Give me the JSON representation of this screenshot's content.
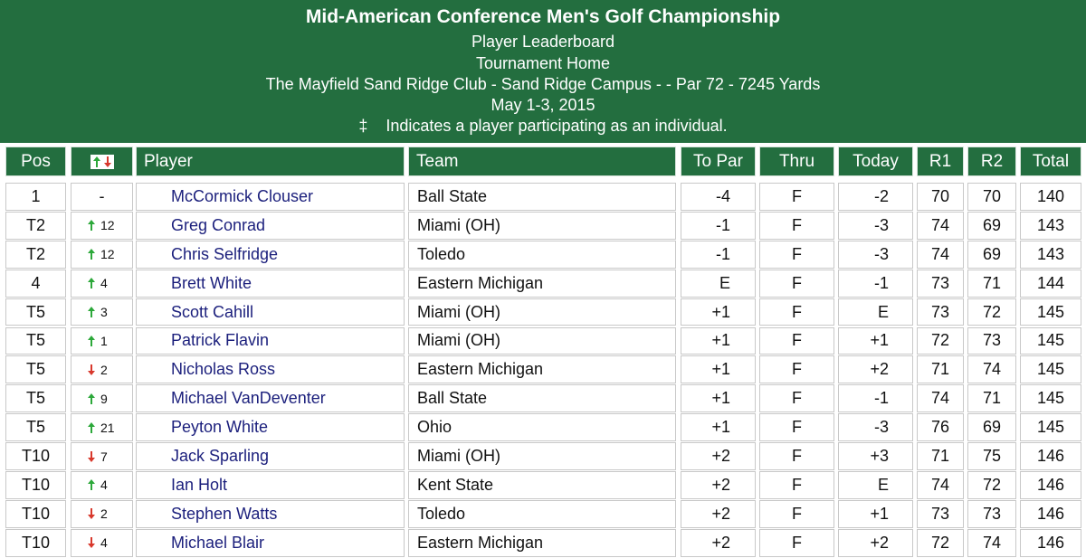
{
  "header": {
    "title": "Mid-American Conference Men's Golf Championship",
    "subtitle": "Player Leaderboard",
    "link": "Tournament Home",
    "course": "The Mayfield Sand Ridge Club - Sand Ridge Campus - - Par 72 - 7245 Yards",
    "dates": "May 1-3, 2015",
    "note_symbol": "‡",
    "note": "Indicates a player participating as an individual."
  },
  "table": {
    "columns": [
      "Pos",
      "Player",
      "Team",
      "To Par",
      "Thru",
      "Today",
      "R1",
      "R2",
      "Total"
    ],
    "rows": [
      [
        "1",
        "-",
        "McCormick Clouser",
        "Ball State",
        "-4",
        "F",
        "-2",
        70,
        70,
        140
      ],
      [
        "T2",
        {
          "dir": "up",
          "change": 12
        },
        "Greg Conrad",
        "Miami (OH)",
        "-1",
        "F",
        "-3",
        74,
        69,
        143
      ],
      [
        "T2",
        {
          "dir": "up",
          "change": 12
        },
        "Chris Selfridge",
        "Toledo",
        "-1",
        "F",
        "-3",
        74,
        69,
        143
      ],
      [
        "4",
        {
          "dir": "up",
          "change": 4
        },
        "Brett White",
        "Eastern Michigan",
        "E",
        "F",
        "-1",
        73,
        71,
        144
      ],
      [
        "T5",
        {
          "dir": "up",
          "change": 3
        },
        "Scott Cahill",
        "Miami (OH)",
        "+1",
        "F",
        "E",
        73,
        72,
        145
      ],
      [
        "T5",
        {
          "dir": "up",
          "change": 1
        },
        "Patrick Flavin",
        "Miami (OH)",
        "+1",
        "F",
        "+1",
        72,
        73,
        145
      ],
      [
        "T5",
        {
          "dir": "down",
          "change": 2
        },
        "Nicholas Ross",
        "Eastern Michigan",
        "+1",
        "F",
        "+2",
        71,
        74,
        145
      ],
      [
        "T5",
        {
          "dir": "up",
          "change": 9
        },
        "Michael VanDeventer",
        "Ball State",
        "+1",
        "F",
        "-1",
        74,
        71,
        145
      ],
      [
        "T5",
        {
          "dir": "up",
          "change": 21
        },
        "Peyton White",
        "Ohio",
        "+1",
        "F",
        "-3",
        76,
        69,
        145
      ],
      [
        "T10",
        {
          "dir": "down",
          "change": 7
        },
        "Jack Sparling",
        "Miami (OH)",
        "+2",
        "F",
        "+3",
        71,
        75,
        146
      ],
      [
        "T10",
        {
          "dir": "up",
          "change": 4
        },
        "Ian Holt",
        "Kent State",
        "+2",
        "F",
        "E",
        74,
        72,
        146
      ],
      [
        "T10",
        {
          "dir": "down",
          "change": 2
        },
        "Stephen Watts",
        "Toledo",
        "+2",
        "F",
        "+1",
        73,
        73,
        146
      ],
      [
        "T10",
        {
          "dir": "down",
          "change": 4
        },
        "Michael Blair",
        "Eastern Michigan",
        "+2",
        "F",
        "+2",
        72,
        74,
        146
      ]
    ]
  }
}
